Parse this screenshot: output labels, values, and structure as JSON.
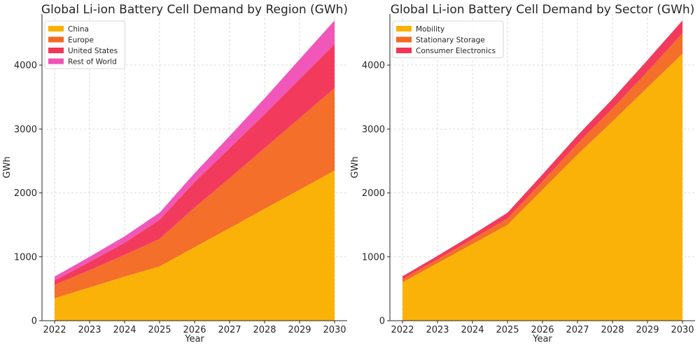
{
  "chart_data": [
    {
      "type": "area",
      "stacked": true,
      "title": "Global Li-ion Battery Cell Demand by Region (GWh)",
      "xlabel": "Year",
      "ylabel": "GWh",
      "ylim": [
        0,
        4800
      ],
      "yticks": [
        0,
        1000,
        2000,
        3000,
        4000
      ],
      "grid": true,
      "legend_position": "top-left",
      "x": [
        2022,
        2023,
        2024,
        2025,
        2026,
        2027,
        2028,
        2029,
        2030
      ],
      "series": [
        {
          "name": "China",
          "color": "#fbb000",
          "values": [
            350,
            520,
            690,
            850,
            1150,
            1450,
            1750,
            2050,
            2350
          ]
        },
        {
          "name": "Europe",
          "color": "#f36a23",
          "values": [
            210,
            270,
            340,
            430,
            620,
            780,
            950,
            1120,
            1290
          ]
        },
        {
          "name": "United States",
          "color": "#f23557",
          "values": [
            70,
            130,
            190,
            300,
            400,
            470,
            530,
            610,
            690
          ]
        },
        {
          "name": "Rest of World",
          "color": "#f152b6",
          "values": [
            60,
            80,
            100,
            110,
            140,
            190,
            250,
            310,
            370
          ]
        }
      ]
    },
    {
      "type": "area",
      "stacked": true,
      "title": "Global Li-ion Battery Cell Demand by Sector (GWh)",
      "xlabel": "Year",
      "ylabel": "GWh",
      "ylim": [
        0,
        4800
      ],
      "yticks": [
        0,
        1000,
        2000,
        3000,
        4000
      ],
      "grid": true,
      "legend_position": "top-left",
      "x": [
        2022,
        2023,
        2024,
        2025,
        2026,
        2027,
        2028,
        2029,
        2030
      ],
      "series": [
        {
          "name": "Mobility",
          "color": "#fbb000",
          "values": [
            600,
            900,
            1200,
            1500,
            2050,
            2600,
            3120,
            3650,
            4180
          ]
        },
        {
          "name": "Stationary Storage",
          "color": "#f36a23",
          "values": [
            50,
            60,
            75,
            100,
            130,
            170,
            200,
            250,
            320
          ]
        },
        {
          "name": "Consumer Electronics",
          "color": "#f23557",
          "values": [
            45,
            55,
            70,
            90,
            110,
            130,
            150,
            180,
            200
          ]
        }
      ]
    }
  ]
}
